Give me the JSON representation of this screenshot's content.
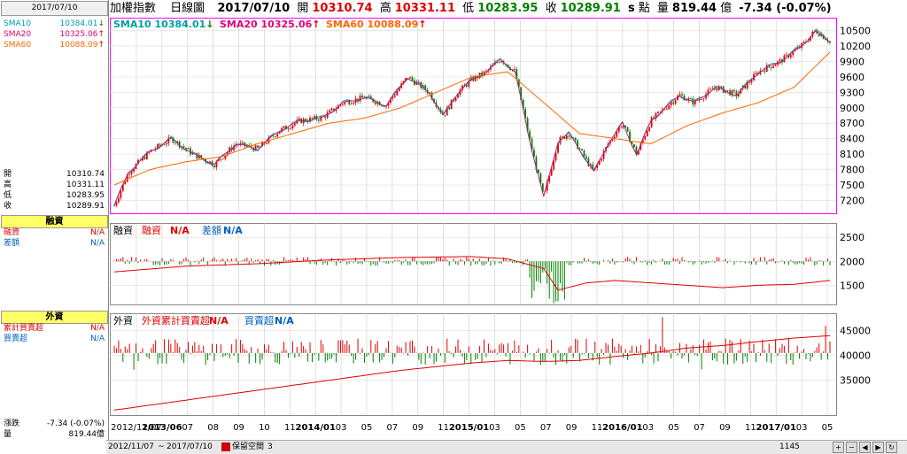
{
  "left": {
    "date": "2017/07/10",
    "sma": [
      {
        "label": "SMA10",
        "value": "10384.01",
        "arrow": "↓",
        "color": "#00a0a0",
        "arrow_color": "#008000"
      },
      {
        "label": "SMA20",
        "value": "10325.06",
        "arrow": "↑",
        "color": "#e0007a",
        "arrow_color": "#e00000"
      },
      {
        "label": "SMA60",
        "value": "10088.09",
        "arrow": "↑",
        "color": "#ff6600",
        "arrow_color": "#e00000"
      }
    ],
    "ohlc": [
      {
        "label": "開",
        "value": "10310.74"
      },
      {
        "label": "高",
        "value": "10331.11"
      },
      {
        "label": "低",
        "value": "10283.95"
      },
      {
        "label": "收",
        "value": "10289.91"
      }
    ],
    "margin_title": "融資",
    "margin": [
      {
        "label": "融資",
        "value": "N/A",
        "color": "#e00000"
      },
      {
        "label": "差額",
        "value": "N/A",
        "color": "#0060c0"
      }
    ],
    "foreign_title": "外資",
    "foreign": [
      {
        "label": "累計買賣超",
        "value": "N/A",
        "color": "#e00000"
      },
      {
        "label": "買賣超",
        "value": "N/A",
        "color": "#0060c0"
      }
    ],
    "change_label": "漲跌",
    "change_value": "-7.34 (-0.07%)",
    "volume_label": "量",
    "volume_value": "819.44億"
  },
  "top": {
    "name": "加權指數",
    "period": "日線圖",
    "date": "2017/07/10",
    "open_label": "開",
    "open": "10310.74",
    "high_label": "高",
    "high": "10331.11",
    "low_label": "低",
    "low": "10283.95",
    "close_label": "收",
    "close": "10289.91",
    "s_label": "s",
    "pt_label": "點",
    "vol_label": "量",
    "vol": "819.44",
    "vol_unit": "億",
    "change": "-7.34 (-0.07%)"
  },
  "panels": {
    "price_legend": [
      {
        "text": "SMA10 10384.01",
        "arrow": "↓",
        "color": "#00a0a0",
        "arrow_color": "#008000"
      },
      {
        "text": "SMA20 10325.06",
        "arrow": "↑",
        "color": "#e0007a",
        "arrow_color": "#e00000"
      },
      {
        "text": "SMA60 10088.09",
        "arrow": "↑",
        "color": "#ff6600",
        "arrow_color": "#e00000"
      }
    ],
    "margin_legend": {
      "title": "融資",
      "a_label": "融資",
      "a_val": "N/A",
      "b_label": "差額",
      "b_val": "N/A"
    },
    "foreign_legend": {
      "title": "外資",
      "a_label": "外資累計買賣超",
      "a_val": "N/A",
      "b_label": "買賣超",
      "b_val": "N/A"
    }
  },
  "bottom": {
    "start_date": "2012/11/07",
    "separator": "~",
    "end_date": "2017/07/10",
    "keep_space_label": "保留空間",
    "keep_space_value": "3",
    "bar_count": "1145"
  },
  "colors": {
    "up": "#e00000",
    "down": "#008000",
    "frame": "#ff00ff",
    "sma10": "#00a0a0",
    "sma20": "#e0007a",
    "sma60": "#ff6600"
  },
  "chart_data": [
    {
      "type": "line",
      "title": "加權指數 日線圖",
      "y_ticks": [
        7200,
        7500,
        7800,
        8100,
        8400,
        8700,
        9000,
        9300,
        9600,
        9900,
        10200,
        10500
      ],
      "ylim": [
        6950,
        10750
      ],
      "x_ticks": [
        "2012/11/07",
        "2013/06",
        "07",
        "08",
        "09",
        "10",
        "11",
        "2014/01",
        "03",
        "05",
        "07",
        "09",
        "11",
        "2015/01",
        "03",
        "05",
        "07",
        "09",
        "11",
        "2016/01",
        "03",
        "05",
        "07",
        "09",
        "11",
        "2017/01",
        "03",
        "05"
      ],
      "series": [
        {
          "name": "SMA60",
          "color": "#ff6600",
          "x": [
            0,
            0.05,
            0.1,
            0.15,
            0.2,
            0.25,
            0.3,
            0.35,
            0.4,
            0.45,
            0.5,
            0.55,
            0.6,
            0.65,
            0.7,
            0.75,
            0.8,
            0.85,
            0.9,
            0.95,
            1
          ],
          "y": [
            7500,
            7800,
            7950,
            8050,
            8300,
            8500,
            8700,
            8800,
            9000,
            9300,
            9600,
            9700,
            9100,
            8500,
            8400,
            8300,
            8650,
            8900,
            9100,
            9400,
            10080
          ]
        },
        {
          "name": "Close",
          "x": [
            0,
            0.02,
            0.05,
            0.08,
            0.11,
            0.14,
            0.17,
            0.2,
            0.23,
            0.26,
            0.29,
            0.32,
            0.35,
            0.38,
            0.41,
            0.44,
            0.46,
            0.48,
            0.5,
            0.52,
            0.54,
            0.56,
            0.58,
            0.6,
            0.62,
            0.635,
            0.65,
            0.67,
            0.69,
            0.71,
            0.73,
            0.75,
            0.77,
            0.79,
            0.81,
            0.84,
            0.87,
            0.9,
            0.93,
            0.96,
            0.98,
            1
          ],
          "y": [
            7100,
            7750,
            8150,
            8400,
            8100,
            7900,
            8300,
            8200,
            8550,
            8750,
            8800,
            9100,
            9200,
            9050,
            9600,
            9300,
            8850,
            9300,
            9550,
            9700,
            9950,
            9700,
            8400,
            7250,
            8350,
            8500,
            8200,
            7750,
            8300,
            8700,
            8100,
            8750,
            9000,
            9250,
            9100,
            9400,
            9250,
            9700,
            9900,
            10200,
            10500,
            10290
          ]
        }
      ]
    },
    {
      "type": "bar",
      "title": "融資",
      "y_ticks": [
        1500,
        2000,
        2500
      ],
      "ylim": [
        1100,
        2800
      ],
      "series": [
        {
          "name": "融資",
          "color": "#e00000",
          "x": [
            0,
            0.1,
            0.2,
            0.3,
            0.4,
            0.5,
            0.55,
            0.6,
            0.62,
            0.66,
            0.7,
            0.75,
            0.8,
            0.85,
            0.9,
            0.95,
            1
          ],
          "y": [
            1780,
            1900,
            1950,
            2030,
            2080,
            2100,
            2050,
            1850,
            1400,
            1550,
            1600,
            1550,
            1500,
            1450,
            1500,
            1520,
            1600
          ]
        }
      ]
    },
    {
      "type": "bar",
      "title": "外資",
      "y_ticks": [
        35000,
        40000,
        45000
      ],
      "ylim": [
        28000,
        48500
      ],
      "series": [
        {
          "name": "外資累計買賣超",
          "color": "#e00000",
          "x": [
            0,
            0.1,
            0.2,
            0.3,
            0.4,
            0.5,
            0.55,
            0.6,
            0.65,
            0.7,
            0.75,
            0.8,
            0.85,
            0.9,
            0.95,
            1
          ],
          "y": [
            29000,
            31000,
            33000,
            35000,
            37000,
            38500,
            39000,
            38800,
            39000,
            39800,
            40500,
            41500,
            42000,
            42800,
            43500,
            44000
          ]
        }
      ]
    }
  ]
}
